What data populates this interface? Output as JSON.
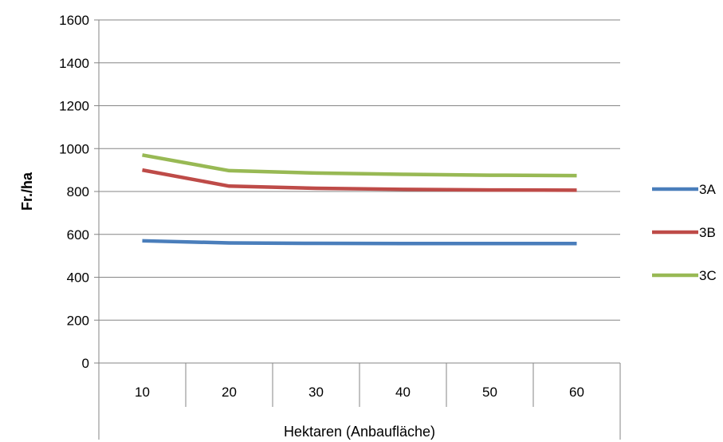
{
  "chart_data": {
    "type": "line",
    "title": "",
    "xlabel": "Hektaren (Anbaufläche)",
    "ylabel": "Fr./ha",
    "categories": [
      "10",
      "20",
      "30",
      "40",
      "50",
      "60"
    ],
    "ylim": [
      0,
      1600
    ],
    "yticks": [
      0,
      200,
      400,
      600,
      800,
      1000,
      1200,
      1400,
      1600
    ],
    "grid": true,
    "legend_position": "right",
    "series": [
      {
        "name": "3A",
        "color": "#4a7ebb",
        "values": [
          570,
          560,
          558,
          557,
          557,
          557
        ]
      },
      {
        "name": "3B",
        "color": "#be4b48",
        "values": [
          900,
          825,
          815,
          810,
          807,
          806
        ]
      },
      {
        "name": "3C",
        "color": "#98b954",
        "values": [
          970,
          897,
          886,
          880,
          876,
          874
        ]
      }
    ]
  }
}
